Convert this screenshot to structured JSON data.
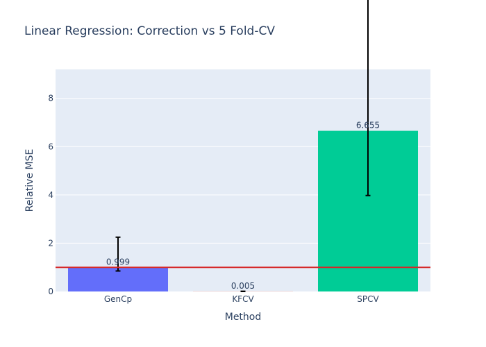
{
  "chart_data": {
    "type": "bar",
    "title": "Linear Regression: Correction vs 5 Fold-CV",
    "xlabel": "Method",
    "ylabel": "Relative MSE",
    "categories": [
      "GenCp",
      "KFCV",
      "SPCV"
    ],
    "values": [
      0.999,
      0.005,
      6.655
    ],
    "value_labels": [
      "0.999",
      "0.005",
      "6.655"
    ],
    "error_low": [
      0.15,
      0.005,
      2.68
    ],
    "error_high": [
      1.25,
      0.005,
      8.9
    ],
    "bar_colors": [
      "#636efa",
      "#ef553b",
      "#00cc96"
    ],
    "ylim": [
      0,
      9.2
    ],
    "yticks": [
      0,
      2,
      4,
      6,
      8
    ],
    "reference_line": {
      "y": 1,
      "color": "#d62728"
    },
    "grid": true,
    "plot_background": "#e5ecf6",
    "legend": "none"
  }
}
